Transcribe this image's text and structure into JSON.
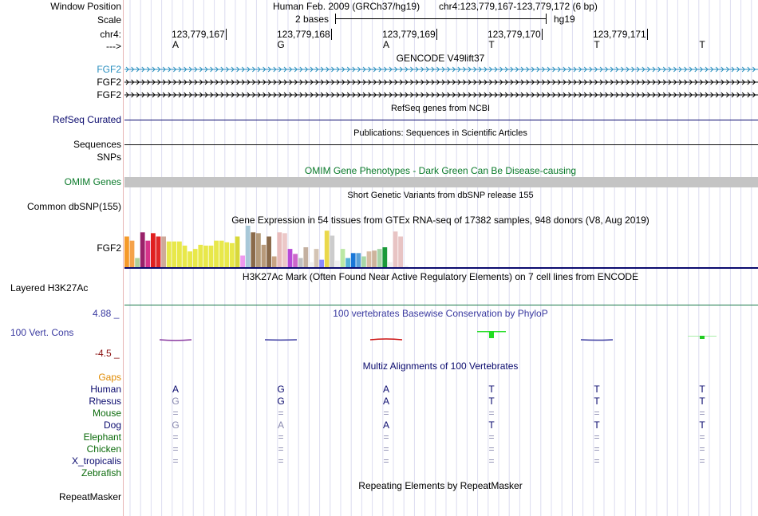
{
  "ruler": {
    "window_position_label": "Window Position",
    "scale_label": "Scale",
    "chrom_label": "chr4:",
    "strand_label": "--->",
    "assembly_text": "Human Feb. 2009 (GRCh37/hg19)",
    "position_text": "chr4:123,779,167-123,779,172 (6 bp)",
    "scale_text": "2 bases",
    "db_text": "hg19",
    "coords": [
      "123,779,167",
      "123,779,168",
      "123,779,169",
      "123,779,170",
      "123,779,171"
    ],
    "bases": [
      "A",
      "G",
      "A",
      "T",
      "T",
      "T"
    ]
  },
  "tracks": {
    "gencode": {
      "title": "GENCODE V49lift37",
      "labels": [
        "FGF2",
        "FGF2",
        "FGF2"
      ]
    },
    "refseq": {
      "title": "RefSeq genes from NCBI",
      "label": "RefSeq Curated"
    },
    "publications": {
      "title": "Publications: Sequences in Scientific Articles",
      "label": "Sequences"
    },
    "snps_label": "SNPs",
    "omim": {
      "title": "OMIM Gene Phenotypes - Dark Green Can Be Disease-causing",
      "label": "OMIM Genes"
    },
    "dbsnp": {
      "title": "Short Genetic Variants from dbSNP release 155",
      "label": "Common dbSNP(155)"
    },
    "gtex": {
      "title": "Gene Expression in 54 tissues from GTEx RNA-seq of 17382 samples, 948 donors (V8, Aug 2019)",
      "label": "FGF2",
      "bars": [
        {
          "v": 0.74,
          "c": "#f59a2a"
        },
        {
          "v": 0.64,
          "c": "#f5a24a"
        },
        {
          "v": 0.22,
          "c": "#aed09a"
        },
        {
          "v": 0.84,
          "c": "#99226a"
        },
        {
          "v": 0.64,
          "c": "#d6338a"
        },
        {
          "v": 0.82,
          "c": "#e01f1f"
        },
        {
          "v": 0.74,
          "c": "#e02828"
        },
        {
          "v": 0.74,
          "c": "#ceaa9a"
        },
        {
          "v": 0.62,
          "c": "#e8e84a"
        },
        {
          "v": 0.62,
          "c": "#e8e84a"
        },
        {
          "v": 0.62,
          "c": "#e8e84a"
        },
        {
          "v": 0.52,
          "c": "#e8e84a"
        },
        {
          "v": 0.38,
          "c": "#e8e84a"
        },
        {
          "v": 0.44,
          "c": "#e8e84a"
        },
        {
          "v": 0.54,
          "c": "#e8e84a"
        },
        {
          "v": 0.52,
          "c": "#e8e84a"
        },
        {
          "v": 0.52,
          "c": "#e8e84a"
        },
        {
          "v": 0.64,
          "c": "#e8e84a"
        },
        {
          "v": 0.64,
          "c": "#e8e84a"
        },
        {
          "v": 0.6,
          "c": "#e8e84a"
        },
        {
          "v": 0.58,
          "c": "#e8e84a"
        },
        {
          "v": 0.74,
          "c": "#d8d83a"
        },
        {
          "v": 0.28,
          "c": "#ee99ee"
        },
        {
          "v": 1.0,
          "c": "#a8c8d8"
        },
        {
          "v": 0.84,
          "c": "#8a6a4a"
        },
        {
          "v": 0.82,
          "c": "#b49a7a"
        },
        {
          "v": 0.54,
          "c": "#b89a7a"
        },
        {
          "v": 0.74,
          "c": "#8a6a4a"
        },
        {
          "v": 0.26,
          "c": "#c8a484"
        },
        {
          "v": 0.84,
          "c": "#e8bcbc"
        },
        {
          "v": 0.82,
          "c": "#ecc8c8"
        },
        {
          "v": 0.44,
          "c": "#b84ad8"
        },
        {
          "v": 0.32,
          "c": "#cc66cc"
        },
        {
          "v": 0.22,
          "c": "#c0c0c0"
        },
        {
          "v": 0.48,
          "c": "#c4b0a0"
        },
        {
          "v": 0.12,
          "c": "#f0f0f0"
        },
        {
          "v": 0.44,
          "c": "#d4c4b4"
        },
        {
          "v": 0.18,
          "c": "#8a8aff"
        },
        {
          "v": 0.88,
          "c": "#ead84a"
        },
        {
          "v": 0.76,
          "c": "#cccccc"
        },
        {
          "v": 0.16,
          "c": "#f0f0f0"
        },
        {
          "v": 0.44,
          "c": "#bbe8a4"
        },
        {
          "v": 0.22,
          "c": "#55b2d8"
        },
        {
          "v": 0.34,
          "c": "#1a77d8"
        },
        {
          "v": 0.34,
          "c": "#5aa0d8"
        },
        {
          "v": 0.26,
          "c": "#a8d8a8"
        },
        {
          "v": 0.38,
          "c": "#d8bca4"
        },
        {
          "v": 0.4,
          "c": "#ceb49c"
        },
        {
          "v": 0.44,
          "c": "#a8d4a8"
        },
        {
          "v": 0.48,
          "c": "#1a9a3a"
        },
        {
          "v": 0.12,
          "c": "#f0f0f0"
        },
        {
          "v": 0.86,
          "c": "#e8c4c4"
        },
        {
          "v": 0.74,
          "c": "#e8c4c4"
        },
        {
          "v": 0.04,
          "c": "#f0f0f0"
        }
      ]
    },
    "h3k27ac": {
      "title": "H3K27Ac Mark (Often Found Near Active Regulatory Elements) on 7 cell lines from ENCODE",
      "label": "Layered H3K27Ac"
    },
    "phylop": {
      "title": "100 vertebrates Basewise Conservation by PhyloP",
      "label": "100 Vert. Cons",
      "max_label": "4.88 _",
      "min_label": "-4.5 _",
      "range": [
        -4.5,
        4.88
      ],
      "values": [
        -0.35,
        -0.15,
        0.35,
        1.9,
        -0.2,
        0.9
      ]
    },
    "gaps_label": "Gaps",
    "multiz": {
      "title": "Multiz Alignments of 100 Vertebrates",
      "species": [
        {
          "name": "Human",
          "bases": [
            "A",
            "G",
            "A",
            "T",
            "T",
            "T"
          ]
        },
        {
          "name": "Rhesus",
          "bases": [
            "G",
            "G",
            "A",
            "T",
            "T",
            "T"
          ]
        },
        {
          "name": "Mouse",
          "bases": [
            "=",
            "=",
            "=",
            "=",
            "=",
            "="
          ]
        },
        {
          "name": "Dog",
          "bases": [
            "G",
            "A",
            "A",
            "T",
            "T",
            "T"
          ]
        },
        {
          "name": "Elephant",
          "bases": [
            "=",
            "=",
            "=",
            "=",
            "=",
            "="
          ]
        },
        {
          "name": "Chicken",
          "bases": [
            "=",
            "=",
            "=",
            "=",
            "=",
            "="
          ]
        },
        {
          "name": "X_tropicalis",
          "bases": [
            "=",
            "=",
            "=",
            "=",
            "=",
            "="
          ]
        },
        {
          "name": "Zebrafish",
          "bases": [
            "",
            "",
            "",
            "",
            "",
            ""
          ]
        }
      ]
    },
    "repeatmasker": {
      "title": "Repeating Elements by RepeatMasker",
      "label": "RepeatMasker"
    }
  },
  "colors": {
    "gencode_label_top": "#2a8fbf",
    "navy": "#0a0a6e",
    "omim_green": "#0a7a2a",
    "omim_bar": "#c4c4c4",
    "separator": "#e7b5b5",
    "gridline": "#dcdcf0",
    "phylop_pos_max": "#1a9a3a",
    "phylop_neg_max": "#8a1010",
    "gaps_orange": "#e08a00",
    "dark_green": "#0a6a0a",
    "h3k27ac_line": "#1a7a4a",
    "phylop_title": "#3a3aa0",
    "pale_base": "#8a8ab0"
  }
}
